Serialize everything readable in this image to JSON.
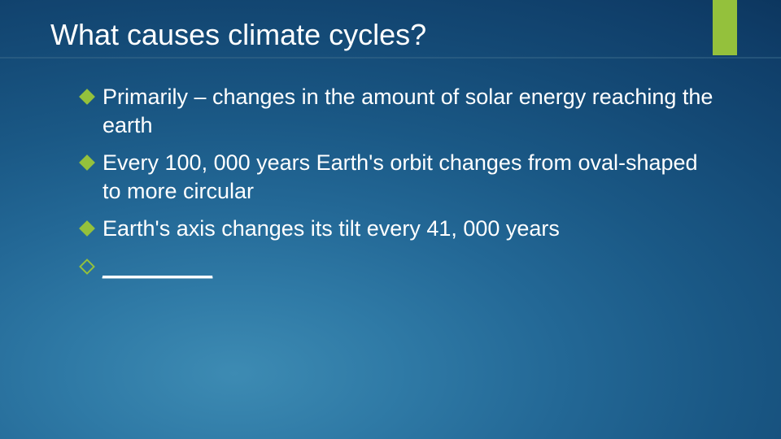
{
  "slide": {
    "title_text": "What causes climate cycles?",
    "title_fontsize": 36,
    "title_color": "#ffffff",
    "background_gradient": {
      "type": "radial",
      "stops": [
        "#3d8bb3",
        "#2f7aa6",
        "#236896",
        "#1a5885",
        "#144a76",
        "#0f3d68",
        "#0a3158",
        "#062848"
      ]
    },
    "accent_color": "#94c13c",
    "body_fontsize": 27,
    "body_color": "#ffffff",
    "bullets": [
      {
        "text": "Primarily – changes in the amount of solar energy reaching the earth",
        "marker": "filled"
      },
      {
        "text": "Every 100, 000 years Earth's orbit changes from oval-shaped to more circular",
        "marker": "filled"
      },
      {
        "text": "Earth's axis changes its tilt every 41, 000 years",
        "marker": "filled"
      },
      {
        "text": "_________",
        "marker": "outline",
        "underline": true
      }
    ]
  }
}
